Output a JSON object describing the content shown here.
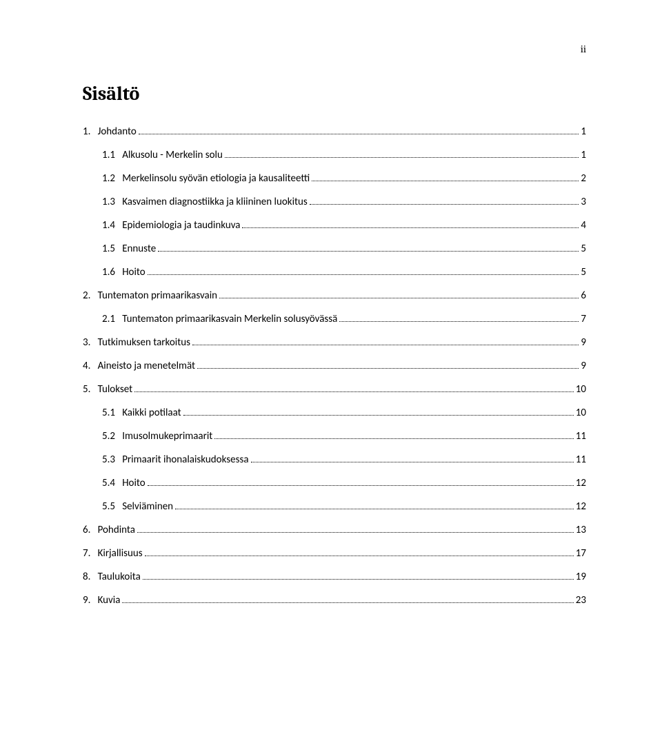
{
  "page_number_roman": "ii",
  "title": "Sisältö",
  "colors": {
    "background": "#ffffff",
    "text": "#000000"
  },
  "typography": {
    "title_fontsize_pt": 21,
    "body_fontsize_pt": 11,
    "title_font": "Cambria",
    "body_font": "Calibri"
  },
  "toc": [
    {
      "level": 1,
      "num": "1.",
      "text": "Johdanto",
      "page": "1"
    },
    {
      "level": 2,
      "num": "1.1",
      "text": "Alkusolu - Merkelin solu",
      "page": "1"
    },
    {
      "level": 2,
      "num": "1.2",
      "text": "Merkelinsolu syövän etiologia ja kausaliteetti",
      "page": "2"
    },
    {
      "level": 2,
      "num": "1.3",
      "text": "Kasvaimen diagnostiikka ja kliininen luokitus",
      "page": "3"
    },
    {
      "level": 2,
      "num": "1.4",
      "text": "Epidemiologia ja taudinkuva",
      "page": "4"
    },
    {
      "level": 2,
      "num": "1.5",
      "text": "Ennuste",
      "page": "5"
    },
    {
      "level": 2,
      "num": "1.6",
      "text": "Hoito",
      "page": "5"
    },
    {
      "level": 1,
      "num": "2.",
      "text": "Tuntematon primaarikasvain",
      "page": "6"
    },
    {
      "level": 2,
      "num": "2.1",
      "text": "Tuntematon primaarikasvain Merkelin solusyövässä",
      "page": "7"
    },
    {
      "level": 1,
      "num": "3.",
      "text": "Tutkimuksen tarkoitus",
      "page": "9"
    },
    {
      "level": 1,
      "num": "4.",
      "text": "Aineisto ja menetelmät",
      "page": "9"
    },
    {
      "level": 1,
      "num": "5.",
      "text": "Tulokset",
      "page": "10"
    },
    {
      "level": 2,
      "num": "5.1",
      "text": "Kaikki potilaat",
      "page": "10"
    },
    {
      "level": 2,
      "num": "5.2",
      "text": "Imusolmukeprimaarit",
      "page": "11"
    },
    {
      "level": 2,
      "num": "5.3",
      "text": "Primaarit ihonalaiskudoksessa",
      "page": "11"
    },
    {
      "level": 2,
      "num": "5.4",
      "text": "Hoito",
      "page": "12"
    },
    {
      "level": 2,
      "num": "5.5",
      "text": "Selviäminen",
      "page": "12"
    },
    {
      "level": 1,
      "num": "6.",
      "text": "Pohdinta",
      "page": "13"
    },
    {
      "level": 1,
      "num": "7.",
      "text": "Kirjallisuus",
      "page": "17"
    },
    {
      "level": 1,
      "num": "8.",
      "text": "Taulukoita",
      "page": "19"
    },
    {
      "level": 1,
      "num": "9.",
      "text": "Kuvia",
      "page": "23"
    }
  ]
}
